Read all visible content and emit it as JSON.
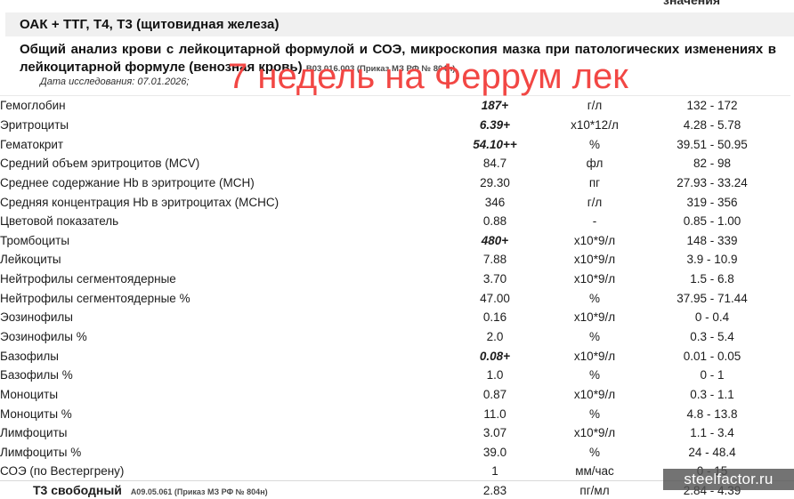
{
  "column_header_fragment": "значения",
  "report": {
    "title": "ОАК + ТТГ, Т4, Т3 (щитовидная железа)",
    "subtitle": "Общий анализ крови с лейкоцитарной формулой и СОЭ, микроскопия мазка при патологических изменениях в лейкоцитарной формуле (венозная кровь)",
    "subtitle_code": "B03.016.003 (Приказ МЗ РФ № 804н)",
    "study_date": "Дата исследования: 07.01.2026;"
  },
  "overlay": {
    "text": "7 недель на Феррум лек",
    "color": "#f24744"
  },
  "watermark": {
    "text": "steelfactor.ru"
  },
  "results_table": {
    "rows": [
      {
        "name": "Гемоглобин",
        "value": "187+",
        "unit": "г/л",
        "range": "132 - 172",
        "flagged": true
      },
      {
        "name": "Эритроциты",
        "value": "6.39+",
        "unit": "х10*12/л",
        "range": "4.28 - 5.78",
        "flagged": true
      },
      {
        "name": "Гематокрит",
        "value": "54.10++",
        "unit": "%",
        "range": "39.51 - 50.95",
        "flagged": true
      },
      {
        "name": "Средний объем эритроцитов (MCV)",
        "value": "84.7",
        "unit": "фл",
        "range": "82 - 98",
        "flagged": false
      },
      {
        "name": "Среднее содержание Hb в эритроците (MCH)",
        "value": "29.30",
        "unit": "пг",
        "range": "27.93 - 33.24",
        "flagged": false
      },
      {
        "name": "Средняя концентрация Hb в эритроцитах (MCHC)",
        "value": "346",
        "unit": "г/л",
        "range": "319 - 356",
        "flagged": false
      },
      {
        "name": "Цветовой показатель",
        "value": "0.88",
        "unit": "-",
        "range": "0.85 - 1.00",
        "flagged": false
      },
      {
        "name": "Тромбоциты",
        "value": "480+",
        "unit": "х10*9/л",
        "range": "148 - 339",
        "flagged": true
      },
      {
        "name": "Лейкоциты",
        "value": "7.88",
        "unit": "х10*9/л",
        "range": "3.9 - 10.9",
        "flagged": false
      },
      {
        "name": "Нейтрофилы сегментоядерные",
        "value": "3.70",
        "unit": "х10*9/л",
        "range": "1.5 - 6.8",
        "flagged": false
      },
      {
        "name": "Нейтрофилы сегментоядерные %",
        "value": "47.00",
        "unit": "%",
        "range": "37.95 - 71.44",
        "flagged": false
      },
      {
        "name": "Эозинофилы",
        "value": "0.16",
        "unit": "х10*9/л",
        "range": "0 - 0.4",
        "flagged": false
      },
      {
        "name": "Эозинофилы %",
        "value": "2.0",
        "unit": "%",
        "range": "0.3 - 5.4",
        "flagged": false
      },
      {
        "name": "Базофилы",
        "value": "0.08+",
        "unit": "х10*9/л",
        "range": "0.01 - 0.05",
        "flagged": true
      },
      {
        "name": "Базофилы %",
        "value": "1.0",
        "unit": "%",
        "range": "0 - 1",
        "flagged": false
      },
      {
        "name": "Моноциты",
        "value": "0.87",
        "unit": "х10*9/л",
        "range": "0.3 - 1.1",
        "flagged": false
      },
      {
        "name": "Моноциты %",
        "value": "11.0",
        "unit": "%",
        "range": "4.8 - 13.8",
        "flagged": false
      },
      {
        "name": "Лимфоциты",
        "value": "3.07",
        "unit": "х10*9/л",
        "range": "1.1 - 3.4",
        "flagged": false
      },
      {
        "name": "Лимфоциты %",
        "value": "39.0",
        "unit": "%",
        "range": "24 - 48.4",
        "flagged": false
      },
      {
        "name": "СОЭ (по Вестергрену)",
        "value": "1",
        "unit": "мм/час",
        "range": "0 - 15",
        "flagged": false
      }
    ],
    "partial_row": {
      "name": "Т3 свободный",
      "code": "A09.05.061 (Приказ МЗ РФ № 804н)",
      "value": "2.83",
      "unit": "пг/мл",
      "range": "2.84 - 4.39"
    }
  }
}
